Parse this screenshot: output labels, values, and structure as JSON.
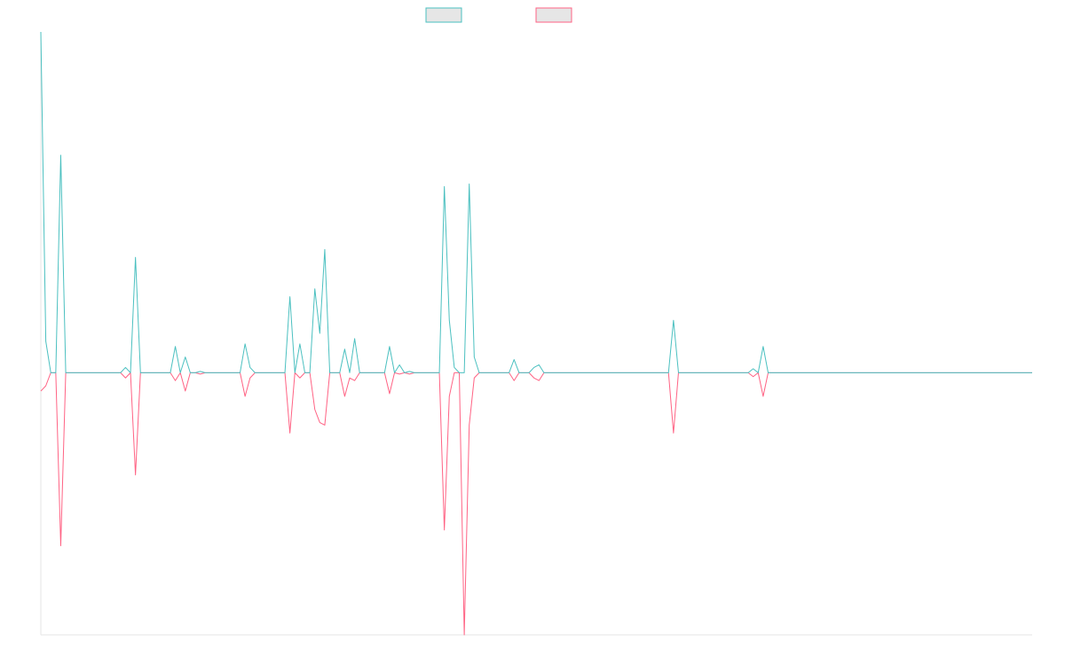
{
  "chart_data": {
    "type": "line",
    "title": "",
    "xlabel": "",
    "ylabel": "",
    "grid": false,
    "legend_position": "top-center",
    "ylim": [
      -1.0,
      1.3
    ],
    "x": [
      0,
      1,
      2,
      3,
      4,
      5,
      6,
      7,
      8,
      9,
      10,
      11,
      12,
      13,
      14,
      15,
      16,
      17,
      18,
      19,
      20,
      21,
      22,
      23,
      24,
      25,
      26,
      27,
      28,
      29,
      30,
      31,
      32,
      33,
      34,
      35,
      36,
      37,
      38,
      39,
      40,
      41,
      42,
      43,
      44,
      45,
      46,
      47,
      48,
      49,
      50,
      51,
      52,
      53,
      54,
      55,
      56,
      57,
      58,
      59,
      60,
      61,
      62,
      63,
      64,
      65,
      66,
      67,
      68,
      69,
      70,
      71,
      72,
      73,
      74,
      75,
      76,
      77,
      78,
      79,
      80,
      81,
      82,
      83,
      84,
      85,
      86,
      87,
      88,
      89,
      90,
      91,
      92,
      93,
      94,
      95,
      96,
      97,
      98,
      99,
      100,
      101,
      102,
      103,
      104,
      105,
      106,
      107,
      108,
      109,
      110,
      111,
      112,
      113,
      114,
      115,
      116,
      117,
      118,
      119,
      120,
      121,
      122,
      123,
      124,
      125,
      126,
      127,
      128,
      129,
      130,
      131,
      132,
      133,
      134,
      135,
      136,
      137,
      138,
      139,
      140,
      141,
      142,
      143,
      144,
      145,
      146,
      147,
      148,
      149,
      150,
      151,
      152,
      153,
      154,
      155,
      156,
      157,
      158,
      159,
      160,
      161,
      162,
      163,
      164,
      165,
      166,
      167,
      168,
      169,
      170,
      171,
      172,
      173,
      174,
      175,
      176,
      177,
      178,
      179,
      180,
      181,
      182,
      183,
      184,
      185,
      186,
      187,
      188,
      189,
      190,
      191,
      192,
      193,
      194,
      195,
      196,
      197,
      198,
      199
    ],
    "series": [
      {
        "color": "#4bc0c0",
        "values": [
          1.3,
          0.12,
          0,
          0,
          0.83,
          0,
          0,
          0,
          0,
          0,
          0,
          0,
          0,
          0,
          0,
          0,
          0,
          0.02,
          0,
          0.44,
          0,
          0,
          0,
          0,
          0,
          0,
          0,
          0.1,
          0,
          0.06,
          0,
          0,
          0.005,
          0,
          0,
          0,
          0,
          0,
          0,
          0,
          0,
          0.11,
          0.02,
          0,
          0,
          0,
          0,
          0,
          0,
          0,
          0.29,
          0,
          0.11,
          0,
          0,
          0.32,
          0.15,
          0.47,
          0,
          0,
          0,
          0.09,
          0,
          0.13,
          0,
          0,
          0,
          0,
          0,
          0,
          0.1,
          0,
          0.03,
          0,
          0.005,
          0,
          0,
          0,
          0,
          0,
          0,
          0.71,
          0.2,
          0.02,
          0,
          0,
          0.72,
          0.06,
          0,
          0,
          0,
          0,
          0,
          0,
          0,
          0.05,
          0,
          0,
          0,
          0.02,
          0.03,
          0,
          0,
          0,
          0,
          0,
          0,
          0,
          0,
          0,
          0,
          0,
          0,
          0,
          0,
          0,
          0,
          0,
          0,
          0,
          0,
          0,
          0,
          0,
          0,
          0,
          0,
          0.2,
          0,
          0,
          0,
          0,
          0,
          0,
          0,
          0,
          0,
          0,
          0,
          0,
          0,
          0,
          0,
          0.015,
          0,
          0.1,
          0,
          0,
          0,
          0,
          0,
          0,
          0,
          0,
          0,
          0,
          0,
          0,
          0,
          0,
          0,
          0,
          0,
          0,
          0,
          0,
          0,
          0,
          0,
          0,
          0,
          0,
          0,
          0,
          0,
          0,
          0,
          0,
          0,
          0,
          0,
          0,
          0,
          0,
          0,
          0,
          0,
          0,
          0,
          0,
          0,
          0,
          0,
          0,
          0,
          0,
          0,
          0,
          0,
          0
        ]
      },
      {
        "color": "#ff6384",
        "values": [
          -0.07,
          -0.05,
          0,
          0,
          -0.66,
          0,
          0,
          0,
          0,
          0,
          0,
          0,
          0,
          0,
          0,
          0,
          0,
          -0.02,
          0,
          -0.39,
          0,
          0,
          0,
          0,
          0,
          0,
          0,
          -0.03,
          0,
          -0.07,
          0,
          0,
          -0.005,
          0,
          0,
          0,
          0,
          0,
          0,
          0,
          0,
          -0.09,
          -0.02,
          0,
          0,
          0,
          0,
          0,
          0,
          0,
          -0.23,
          0,
          -0.02,
          0,
          0,
          -0.14,
          -0.19,
          -0.2,
          0,
          0,
          0,
          -0.09,
          -0.02,
          -0.03,
          0,
          0,
          0,
          0,
          0,
          0,
          -0.08,
          0,
          -0.005,
          0,
          -0.005,
          0,
          0,
          0,
          0,
          0,
          0,
          -0.6,
          -0.09,
          0,
          0,
          -1.0,
          -0.2,
          -0.02,
          0,
          0,
          0,
          0,
          0,
          0,
          0,
          -0.03,
          0,
          0,
          0,
          -0.02,
          -0.03,
          0,
          0,
          0,
          0,
          0,
          0,
          0,
          0,
          0,
          0,
          0,
          0,
          0,
          0,
          0,
          0,
          0,
          0,
          0,
          0,
          0,
          0,
          0,
          0,
          0,
          0,
          -0.23,
          0,
          0,
          0,
          0,
          0,
          0,
          0,
          0,
          0,
          0,
          0,
          0,
          0,
          0,
          0,
          -0.015,
          0,
          -0.09,
          0,
          0,
          0,
          0,
          0,
          0,
          0,
          0,
          0,
          0,
          0,
          0,
          0,
          0,
          0,
          0,
          0,
          0,
          0,
          0,
          0,
          0,
          0,
          0,
          0,
          0,
          0,
          0,
          0,
          0,
          0,
          0,
          0,
          0,
          0,
          0,
          0,
          0,
          0,
          0,
          0,
          0,
          0,
          0,
          0,
          0,
          0,
          0,
          0,
          0,
          0,
          0,
          0,
          0
        ]
      }
    ]
  }
}
